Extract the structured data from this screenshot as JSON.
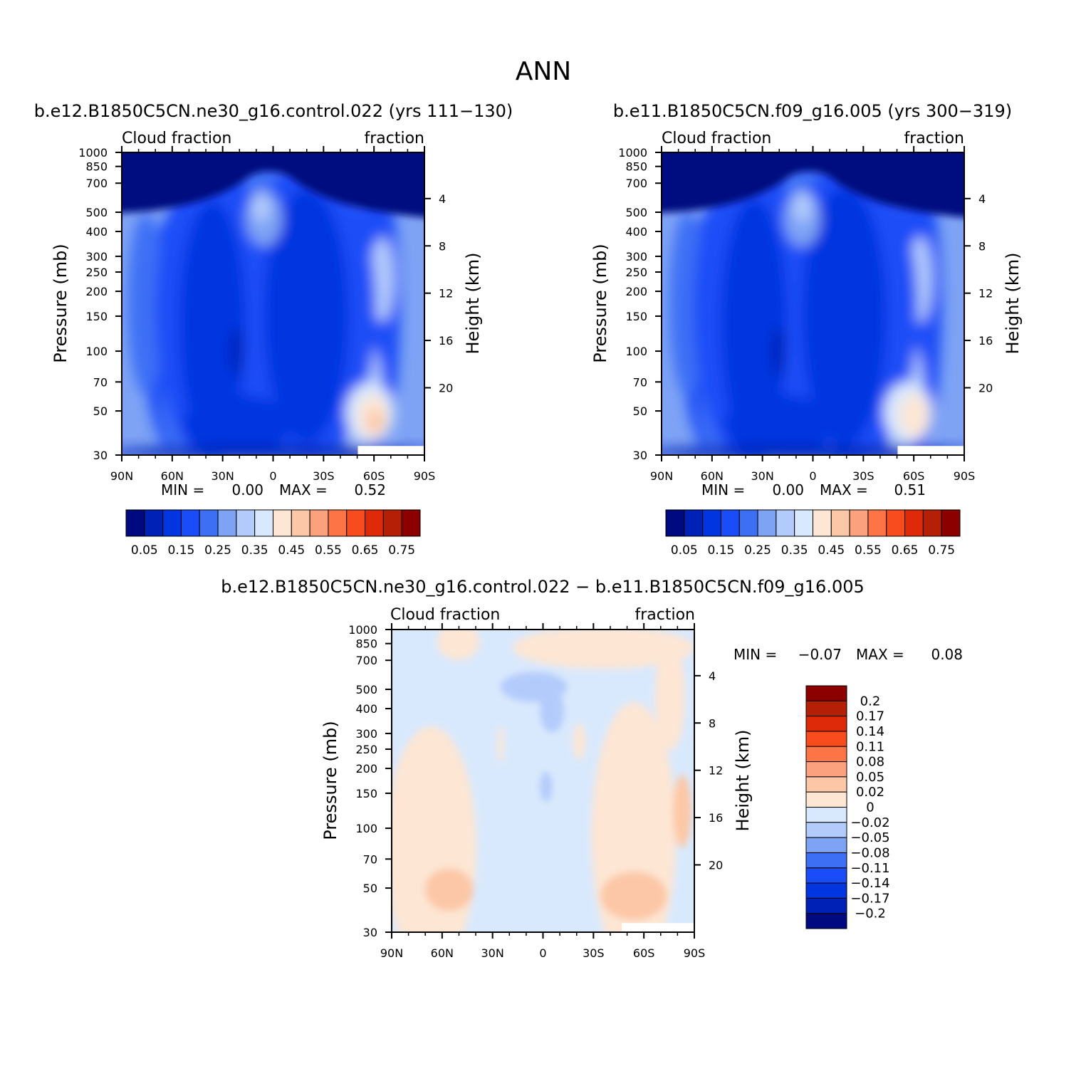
{
  "figure": {
    "title": "ANN"
  },
  "colors": {
    "abs_levels": [
      "#000a80",
      "#0021b5",
      "#0035e0",
      "#1a4df7",
      "#3d6ff5",
      "#7ea3f5",
      "#b3cbfb",
      "#d9e9fd",
      "#fde6d4",
      "#fcc7a6",
      "#fba17e",
      "#fd7446",
      "#f84c1e",
      "#de2a08",
      "#b51f06",
      "#8c0000"
    ],
    "diff_levels": [
      "#000a80",
      "#0021b5",
      "#0035e0",
      "#1a4df7",
      "#3d6ff5",
      "#7ea3f5",
      "#b3cbfb",
      "#d9e9fd",
      "#fde6d4",
      "#fcc7a6",
      "#fba17e",
      "#fd7446",
      "#f84c1e",
      "#de2a08",
      "#b51f06",
      "#8c0000"
    ]
  },
  "axes": {
    "x_ticks": [
      "90N",
      "60N",
      "30N",
      "0",
      "30S",
      "60S",
      "90S"
    ],
    "p_ticks": [
      "30",
      "50",
      "70",
      "100",
      "150",
      "200",
      "250",
      "300",
      "400",
      "500",
      "700",
      "850",
      "1000"
    ],
    "p_values": [
      30,
      50,
      70,
      100,
      150,
      200,
      250,
      300,
      400,
      500,
      700,
      850,
      1000
    ],
    "h_ticks": [
      "20",
      "16",
      "12",
      "8",
      "4"
    ],
    "h_values": [
      20,
      16,
      12,
      8,
      4
    ],
    "ylabel": "Pressure (mb)",
    "ylabel_right": "Height (km)",
    "left_string": "Cloud fraction",
    "right_string": "fraction",
    "min_label": "MIN =",
    "max_label": "MAX ="
  },
  "chart_data": [
    {
      "type": "heatmap",
      "title": "b.e12.B1850C5CN.ne30_g16.control.022 (yrs 111-130)",
      "variable": "Cloud fraction",
      "units": "fraction",
      "x": [
        "90N",
        "60N",
        "30N",
        "0",
        "30S",
        "60S",
        "90S"
      ],
      "ylim_mb": [
        1000,
        30
      ],
      "min": "0.00",
      "max": "0.52",
      "colorbar_labels": [
        "0.05",
        "0.15",
        "0.25",
        "0.35",
        "0.45",
        "0.55",
        "0.65",
        "0.75"
      ],
      "variant": 0
    },
    {
      "type": "heatmap",
      "title": "b.e11.B1850C5CN.f09_g16.005 (yrs 300-319)",
      "variable": "Cloud fraction",
      "units": "fraction",
      "x": [
        "90N",
        "60N",
        "30N",
        "0",
        "30S",
        "60S",
        "90S"
      ],
      "ylim_mb": [
        1000,
        30
      ],
      "min": "0.00",
      "max": "0.51",
      "colorbar_labels": [
        "0.05",
        "0.15",
        "0.25",
        "0.35",
        "0.45",
        "0.55",
        "0.65",
        "0.75"
      ],
      "variant": 1
    },
    {
      "type": "heatmap",
      "title": "b.e12.B1850C5CN.ne30_g16.control.022 - b.e11.B1850C5CN.f09_g16.005",
      "variable": "Cloud fraction",
      "units": "fraction",
      "x": [
        "90N",
        "60N",
        "30N",
        "0",
        "30S",
        "60S",
        "90S"
      ],
      "ylim_mb": [
        1000,
        30
      ],
      "min": "-0.07",
      "max": "0.08",
      "colorbar_labels": [
        "0.2",
        "0.17",
        "0.14",
        "0.11",
        "0.08",
        "0.05",
        "0.02",
        "0",
        "-0.02",
        "-0.05",
        "-0.08",
        "-0.11",
        "-0.14",
        "-0.17",
        "-0.2"
      ]
    }
  ]
}
